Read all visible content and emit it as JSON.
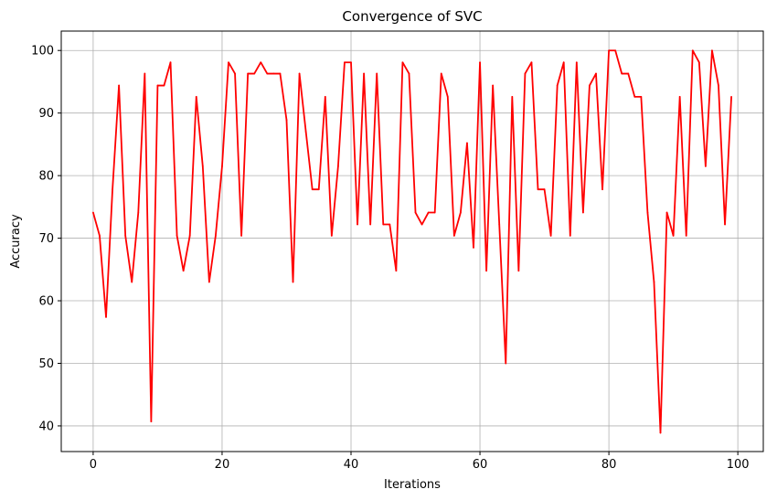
{
  "chart_data": {
    "type": "line",
    "title": "Convergence of SVC",
    "xlabel": "Iterations",
    "ylabel": "Accuracy",
    "xlim": [
      -4.95,
      103.95
    ],
    "ylim": [
      35.9,
      103.1
    ],
    "xticks": [
      0,
      20,
      40,
      60,
      80,
      100
    ],
    "yticks": [
      40,
      50,
      60,
      70,
      80,
      90,
      100
    ],
    "grid": true,
    "series": [
      {
        "color": "#ff0000",
        "x": [
          0,
          1,
          2,
          3,
          4,
          5,
          6,
          7,
          8,
          9,
          10,
          11,
          12,
          13,
          14,
          15,
          16,
          17,
          18,
          19,
          20,
          21,
          22,
          23,
          24,
          25,
          26,
          27,
          28,
          29,
          30,
          31,
          32,
          33,
          34,
          35,
          36,
          37,
          38,
          39,
          40,
          41,
          42,
          43,
          44,
          45,
          46,
          47,
          48,
          49,
          50,
          51,
          52,
          53,
          54,
          55,
          56,
          57,
          58,
          59,
          60,
          61,
          62,
          63,
          64,
          65,
          66,
          67,
          68,
          69,
          70,
          71,
          72,
          73,
          74,
          75,
          76,
          77,
          78,
          79,
          80,
          81,
          82,
          83,
          84,
          85,
          86,
          87,
          88,
          89,
          90,
          91,
          92,
          93,
          94,
          95,
          96,
          97,
          98,
          99
        ],
        "values": [
          74.1,
          70.4,
          57.4,
          77.8,
          94.4,
          70.4,
          63.0,
          74.1,
          96.3,
          40.7,
          94.4,
          94.4,
          98.1,
          70.4,
          64.8,
          70.4,
          92.6,
          81.5,
          63.0,
          70.4,
          81.5,
          98.1,
          96.3,
          70.4,
          96.3,
          96.3,
          98.1,
          96.3,
          96.3,
          96.3,
          88.9,
          63.0,
          96.3,
          87.0,
          77.8,
          77.8,
          92.6,
          70.4,
          81.5,
          98.1,
          98.1,
          72.2,
          96.3,
          72.2,
          96.3,
          72.2,
          72.2,
          64.8,
          98.1,
          96.3,
          74.1,
          72.2,
          74.1,
          74.1,
          96.3,
          92.6,
          70.4,
          74.1,
          85.2,
          68.5,
          98.1,
          64.8,
          94.4,
          72.2,
          50.0,
          92.6,
          64.8,
          96.3,
          98.1,
          77.8,
          77.8,
          70.4,
          94.4,
          98.1,
          70.4,
          98.1,
          74.1,
          94.4,
          96.3,
          77.8,
          100.0,
          100.0,
          96.3,
          96.3,
          92.6,
          92.6,
          74.1,
          63.0,
          38.9,
          74.1,
          70.4,
          92.6,
          70.4,
          100.0,
          98.1,
          81.5,
          100.0,
          94.4,
          72.2,
          92.6
        ]
      }
    ]
  }
}
